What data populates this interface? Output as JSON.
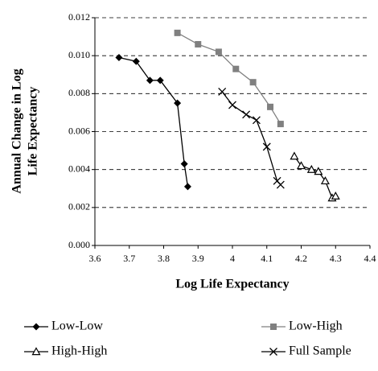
{
  "chart_data": {
    "type": "line",
    "xlabel": "Log Life Expectancy",
    "ylabel": [
      "Annual Change in Log",
      "Life Expectancy"
    ],
    "xlim": [
      3.6,
      4.4
    ],
    "xticks": [
      3.6,
      3.7,
      3.8,
      3.9,
      4,
      4.1,
      4.2,
      4.3,
      4.4
    ],
    "ylim": [
      0,
      0.012
    ],
    "yticks": [
      {
        "value": 0,
        "label": "0.000"
      },
      {
        "value": 0.002,
        "label": "0.002"
      },
      {
        "value": 0.004,
        "label": "0.004"
      },
      {
        "value": 0.006,
        "label": "0.006"
      },
      {
        "value": 0.008,
        "label": "0.008"
      },
      {
        "value": 0.01,
        "label": "0.010"
      },
      {
        "value": 0.012,
        "label": "0.012"
      }
    ],
    "grid": true,
    "series": [
      {
        "name": "Low-Low",
        "color": "#000000",
        "marker": "diamond",
        "x": [
          3.67,
          3.72,
          3.76,
          3.79,
          3.84,
          3.86,
          3.87
        ],
        "values": [
          0.0099,
          0.0097,
          0.0087,
          0.0087,
          0.0075,
          0.0043,
          0.0031
        ]
      },
      {
        "name": "Low-High",
        "color": "#808080",
        "marker": "square",
        "x": [
          3.84,
          3.9,
          3.96,
          4.01,
          4.06,
          4.11,
          4.14
        ],
        "values": [
          0.0112,
          0.0106,
          0.0102,
          0.0093,
          0.0086,
          0.0073,
          0.0064
        ]
      },
      {
        "name": "High-High",
        "color": "#000000",
        "marker": "triangle",
        "x": [
          4.18,
          4.2,
          4.23,
          4.25,
          4.27,
          4.29,
          4.3
        ],
        "values": [
          0.0047,
          0.0042,
          0.004,
          0.0039,
          0.0034,
          0.0025,
          0.0026
        ]
      },
      {
        "name": "Full Sample",
        "color": "#000000",
        "marker": "x",
        "x": [
          3.97,
          4.0,
          4.04,
          4.07,
          4.1,
          4.13,
          4.14
        ],
        "values": [
          0.0081,
          0.0074,
          0.0069,
          0.0066,
          0.0052,
          0.0034,
          0.0032
        ]
      }
    ]
  }
}
